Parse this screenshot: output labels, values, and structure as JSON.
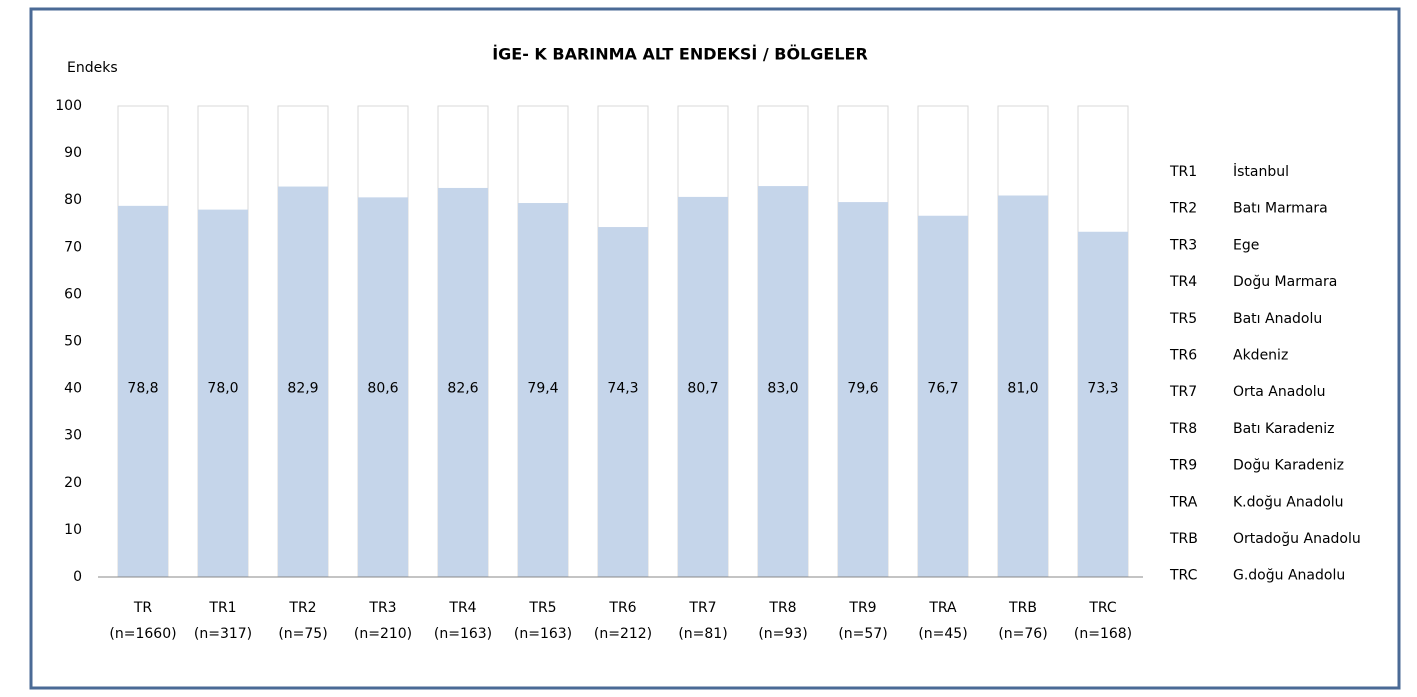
{
  "chart_data": {
    "type": "bar",
    "title": "İGE- K BARINMA ALT ENDEKSİ / BÖLGELER",
    "y_label": "Endeks",
    "categories": [
      "TR",
      "TR1",
      "TR2",
      "TR3",
      "TR4",
      "TR5",
      "TR6",
      "TR7",
      "TR8",
      "TR9",
      "TRA",
      "TRB",
      "TRC"
    ],
    "n_labels": [
      "(n=1660)",
      "(n=317)",
      "(n=75)",
      "(n=210)",
      "(n=163)",
      "(n=163)",
      "(n=212)",
      "(n=81)",
      "(n=93)",
      "(n=57)",
      "(n=45)",
      "(n=76)",
      "(n=168)"
    ],
    "values": [
      78.8,
      78.0,
      82.9,
      80.6,
      82.6,
      79.4,
      74.3,
      80.7,
      83.0,
      79.6,
      76.7,
      81.0,
      73.3
    ],
    "value_labels": [
      "78,8",
      "78,0",
      "82,9",
      "80,6",
      "82,6",
      "79,4",
      "74,3",
      "80,7",
      "83,0",
      "79,6",
      "76,7",
      "81,0",
      "73,3"
    ],
    "color": "#c5d5ea",
    "ylim": [
      0,
      100
    ],
    "yticks": [
      0,
      10,
      20,
      30,
      40,
      50,
      60,
      70,
      80,
      90,
      100
    ],
    "grid": false,
    "region_legend": [
      {
        "code": "TR1",
        "name": "İstanbul"
      },
      {
        "code": "TR2",
        "name": "Batı Marmara"
      },
      {
        "code": "TR3",
        "name": "Ege"
      },
      {
        "code": "TR4",
        "name": "Doğu Marmara"
      },
      {
        "code": "TR5",
        "name": "Batı Anadolu"
      },
      {
        "code": "TR6",
        "name": "Akdeniz"
      },
      {
        "code": "TR7",
        "name": "Orta Anadolu"
      },
      {
        "code": "TR8",
        "name": "Batı Karadeniz"
      },
      {
        "code": "TR9",
        "name": "Doğu Karadeniz"
      },
      {
        "code": "TRA",
        "name": "K.doğu Anadolu"
      },
      {
        "code": "TRB",
        "name": "Ortadoğu Anadolu"
      },
      {
        "code": "TRC",
        "name": "G.doğu Anadolu"
      }
    ]
  }
}
